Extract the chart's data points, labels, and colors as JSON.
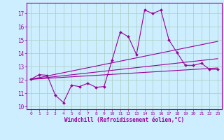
{
  "background_color": "#cceeff",
  "line_color": "#990099",
  "grid_color": "#aaccbb",
  "xlabel": "Windchill (Refroidissement éolien,°C)",
  "xlabel_color": "#990099",
  "tick_color": "#990099",
  "xlim": [
    -0.5,
    23.5
  ],
  "ylim": [
    9.8,
    17.8
  ],
  "yticks": [
    10,
    11,
    12,
    13,
    14,
    15,
    16,
    17
  ],
  "xticks": [
    0,
    1,
    2,
    3,
    4,
    5,
    6,
    7,
    8,
    9,
    10,
    11,
    12,
    13,
    14,
    15,
    16,
    17,
    18,
    19,
    20,
    21,
    22,
    23
  ],
  "zigzag_x": [
    0,
    1,
    2,
    3,
    4,
    5,
    6,
    7,
    8,
    9,
    10,
    11,
    12,
    13,
    14,
    15,
    16,
    17,
    18,
    19,
    20,
    21,
    22,
    23
  ],
  "zigzag_y": [
    12.05,
    12.4,
    12.35,
    10.85,
    10.3,
    11.6,
    11.5,
    11.75,
    11.45,
    11.5,
    13.5,
    15.6,
    15.25,
    13.9,
    17.25,
    17.0,
    17.25,
    15.0,
    14.05,
    13.1,
    13.1,
    13.25,
    12.8,
    12.8
  ],
  "trend1_x": [
    0,
    23
  ],
  "trend1_y": [
    12.05,
    14.9
  ],
  "trend2_x": [
    0,
    23
  ],
  "trend2_y": [
    12.05,
    13.6
  ],
  "trend3_x": [
    0,
    23
  ],
  "trend3_y": [
    12.05,
    12.9
  ]
}
